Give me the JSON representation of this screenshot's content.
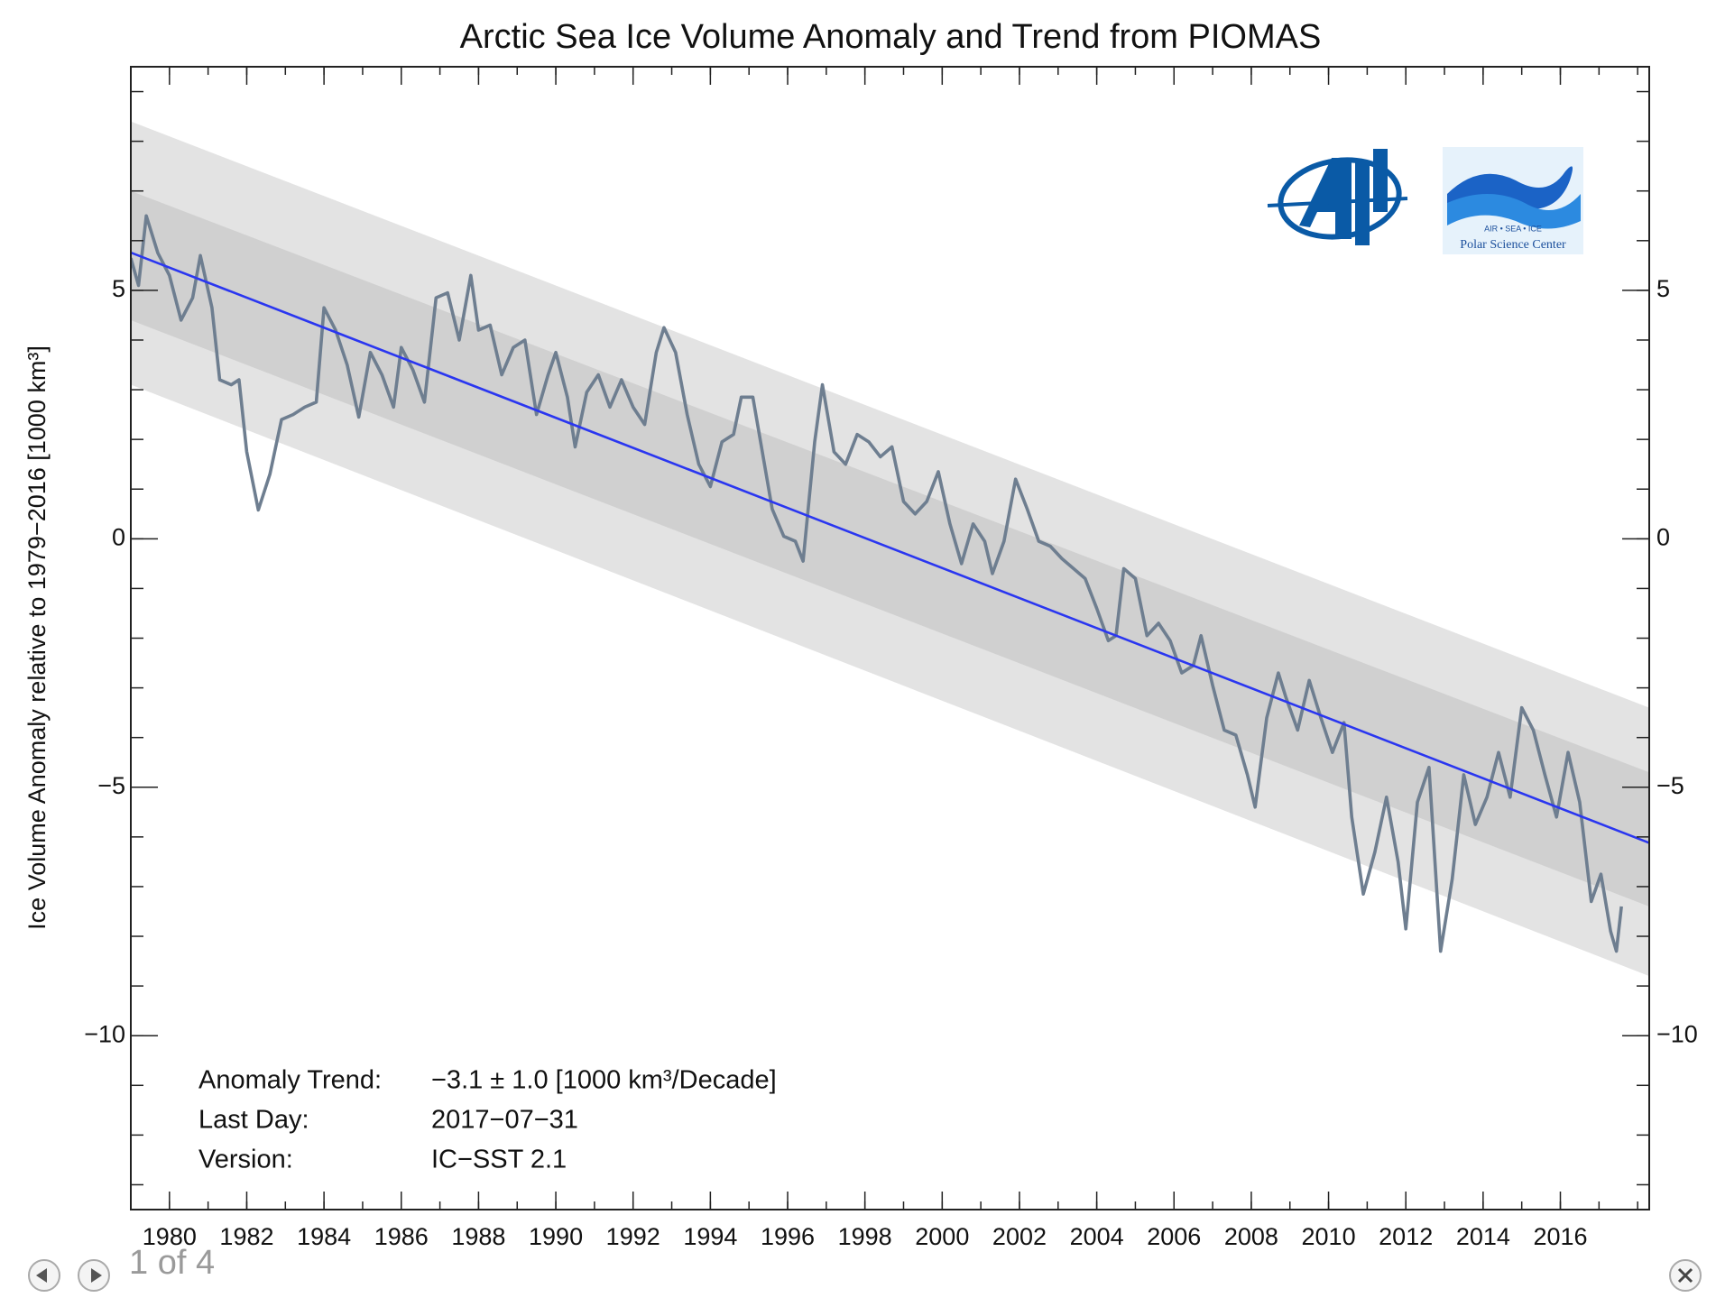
{
  "chart_data": {
    "type": "line",
    "title": "Arctic Sea Ice Volume Anomaly and Trend from PIOMAS",
    "y_label": "Ice Volume Anomaly relative to 1979−2016 [1000 km³]",
    "xlim": [
      1979.0,
      2018.3
    ],
    "ylim": [
      -13.5,
      9.5
    ],
    "xticks": [
      1980,
      1982,
      1984,
      1986,
      1988,
      1990,
      1992,
      1994,
      1996,
      1998,
      2000,
      2002,
      2004,
      2006,
      2008,
      2010,
      2012,
      2014,
      2016
    ],
    "xminorticks": [
      1979,
      1980,
      1981,
      1982,
      1983,
      1984,
      1985,
      1986,
      1987,
      1988,
      1989,
      1990,
      1991,
      1992,
      1993,
      1994,
      1995,
      1996,
      1997,
      1998,
      1999,
      2000,
      2001,
      2002,
      2003,
      2004,
      2005,
      2006,
      2007,
      2008,
      2009,
      2010,
      2011,
      2012,
      2013,
      2014,
      2015,
      2016,
      2017,
      2018
    ],
    "yticks": [
      {
        "value": -10,
        "label": "−10"
      },
      {
        "value": -5,
        "label": "−5"
      },
      0,
      5
    ],
    "yminorticks": [
      -13,
      -12,
      -11,
      -10,
      -9,
      -8,
      -7,
      -6,
      -5,
      -4,
      -3,
      -2,
      -1,
      0,
      1,
      2,
      3,
      4,
      5,
      6,
      7,
      8,
      9
    ],
    "bands": [
      {
        "color": "#e3e3e3",
        "x": [
          1979.0,
          2018.3
        ],
        "upper": [
          8.4,
          -3.4
        ],
        "lower": [
          3.1,
          -8.8
        ]
      },
      {
        "color": "#d0d0d0",
        "x": [
          1979.0,
          2018.3
        ],
        "upper": [
          7.0,
          -4.7
        ],
        "lower": [
          4.4,
          -7.4
        ]
      }
    ],
    "series": [
      {
        "color": "#6e7e90",
        "x": [
          1979.0,
          1979.2,
          1979.4,
          1979.7,
          1980.0,
          1980.3,
          1980.6,
          1980.8,
          1981.1,
          1981.3,
          1981.6,
          1981.8,
          1982.0,
          1982.3,
          1982.6,
          1982.9,
          1983.2,
          1983.5,
          1983.8,
          1984.0,
          1984.3,
          1984.6,
          1984.9,
          1985.2,
          1985.5,
          1985.8,
          1986.0,
          1986.3,
          1986.6,
          1986.9,
          1987.2,
          1987.5,
          1987.8,
          1988.0,
          1988.3,
          1988.6,
          1988.9,
          1989.2,
          1989.5,
          1989.8,
          1990.0,
          1990.3,
          1990.5,
          1990.8,
          1991.1,
          1991.4,
          1991.7,
          1992.0,
          1992.3,
          1992.6,
          1992.8,
          1993.1,
          1993.4,
          1993.7,
          1994.0,
          1994.3,
          1994.6,
          1994.8,
          1995.1,
          1995.4,
          1995.6,
          1995.9,
          1996.2,
          1996.4,
          1996.7,
          1996.9,
          1997.2,
          1997.5,
          1997.8,
          1998.1,
          1998.4,
          1998.7,
          1999.0,
          1999.3,
          1999.6,
          1999.9,
          2000.2,
          2000.5,
          2000.8,
          2001.1,
          2001.3,
          2001.6,
          2001.9,
          2002.2,
          2002.5,
          2002.8,
          2003.1,
          2003.4,
          2003.7,
          2004.0,
          2004.3,
          2004.5,
          2004.7,
          2005.0,
          2005.3,
          2005.6,
          2005.9,
          2006.2,
          2006.5,
          2006.7,
          2007.0,
          2007.3,
          2007.6,
          2007.9,
          2008.1,
          2008.4,
          2008.7,
          2008.9,
          2009.2,
          2009.5,
          2009.8,
          2010.1,
          2010.4,
          2010.6,
          2010.9,
          2011.2,
          2011.5,
          2011.8,
          2012.0,
          2012.3,
          2012.6,
          2012.9,
          2013.2,
          2013.5,
          2013.8,
          2014.1,
          2014.4,
          2014.7,
          2015.0,
          2015.3,
          2015.6,
          2015.9,
          2016.2,
          2016.5,
          2016.8,
          2017.05,
          2017.3,
          2017.45,
          2017.58
        ],
        "values": [
          5.65,
          5.1,
          6.5,
          5.75,
          5.3,
          4.4,
          4.85,
          5.7,
          4.65,
          3.2,
          3.1,
          3.2,
          1.75,
          0.58,
          1.3,
          2.4,
          2.5,
          2.65,
          2.75,
          4.65,
          4.2,
          3.5,
          2.45,
          3.75,
          3.3,
          2.65,
          3.85,
          3.4,
          2.75,
          4.85,
          4.95,
          4.0,
          5.3,
          4.2,
          4.3,
          3.3,
          3.85,
          4.0,
          2.5,
          3.3,
          3.75,
          2.85,
          1.85,
          2.95,
          3.3,
          2.65,
          3.2,
          2.65,
          2.3,
          3.75,
          4.25,
          3.75,
          2.5,
          1.5,
          1.05,
          1.95,
          2.1,
          2.85,
          2.85,
          1.5,
          0.6,
          0.05,
          -0.05,
          -0.45,
          1.95,
          3.1,
          1.75,
          1.5,
          2.1,
          1.95,
          1.65,
          1.85,
          0.75,
          0.5,
          0.75,
          1.35,
          0.3,
          -0.5,
          0.3,
          -0.05,
          -0.7,
          -0.05,
          1.2,
          0.6,
          -0.05,
          -0.15,
          -0.4,
          -0.6,
          -0.8,
          -1.4,
          -2.05,
          -1.95,
          -0.6,
          -0.8,
          -1.95,
          -1.7,
          -2.05,
          -2.7,
          -2.55,
          -1.95,
          -2.95,
          -3.85,
          -3.95,
          -4.75,
          -5.4,
          -3.6,
          -2.7,
          -3.2,
          -3.85,
          -2.85,
          -3.6,
          -4.3,
          -3.7,
          -5.6,
          -7.15,
          -6.3,
          -5.2,
          -6.5,
          -7.85,
          -5.3,
          -4.6,
          -8.3,
          -6.85,
          -4.75,
          -5.75,
          -5.2,
          -4.3,
          -5.2,
          -3.4,
          -3.85,
          -4.75,
          -5.6,
          -4.3,
          -5.3,
          -7.3,
          -6.75,
          -7.9,
          -8.3,
          -7.4
        ]
      },
      {
        "color": "#2a36f0",
        "x": [
          1979.0,
          2018.3
        ],
        "values": [
          5.76,
          -6.12
        ]
      }
    ],
    "annotations": [
      [
        "Anomaly Trend:",
        "−3.1 ± 1.0 [1000 km³/Decade]"
      ],
      [
        "Last Day:",
        "2017−07−31"
      ],
      [
        "Version:",
        "IC−SST 2.1"
      ]
    ]
  },
  "logos": {
    "psc_top": "AIR  •  SEA  •  ICE",
    "psc_name": "Polar Science Center"
  },
  "viewer": {
    "counter": "1 of 4"
  }
}
